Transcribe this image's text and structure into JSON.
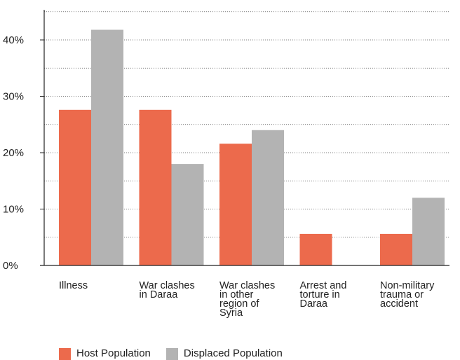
{
  "chart_data": {
    "type": "bar",
    "categories": [
      [
        "Illness"
      ],
      [
        "War clashes",
        "in Daraa"
      ],
      [
        "War clashes",
        "in other",
        "region of",
        "Syria"
      ],
      [
        "Arrest and",
        "torture in",
        "Daraa"
      ],
      [
        "Non-military",
        "trauma or",
        "accident"
      ]
    ],
    "series": [
      {
        "name": "Host Population",
        "color": "#ec6a4c",
        "values": [
          27.6,
          27.6,
          21.6,
          5.6,
          5.6
        ]
      },
      {
        "name": "Displaced Population",
        "color": "#b3b3b3",
        "values": [
          41.8,
          18.0,
          24.0,
          0,
          12.0
        ]
      }
    ],
    "ylim": [
      0,
      45
    ],
    "yticks": [
      0,
      10,
      20,
      30,
      40
    ],
    "ytick_labels": [
      "0%",
      "10%",
      "20%",
      "30%",
      "40%"
    ],
    "grid": "dotted horizontal every 5%",
    "legend_position": "bottom-left"
  }
}
